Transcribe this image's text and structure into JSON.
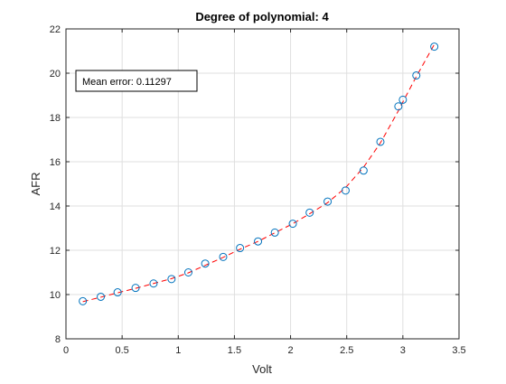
{
  "chart_data": {
    "type": "scatter",
    "title": "Degree of polynomial: 4",
    "xlabel": "Volt",
    "ylabel": "AFR",
    "xlim": [
      0,
      3.5
    ],
    "ylim": [
      8,
      22
    ],
    "xticks": [
      0,
      0.5,
      1,
      1.5,
      2,
      2.5,
      3,
      3.5
    ],
    "xtick_labels": [
      "0",
      "0.5",
      "1",
      "1.5",
      "2",
      "2.5",
      "3",
      "3.5"
    ],
    "yticks": [
      8,
      10,
      12,
      14,
      16,
      18,
      20,
      22
    ],
    "ytick_labels": [
      "8",
      "10",
      "12",
      "14",
      "16",
      "18",
      "20",
      "22"
    ],
    "grid": true,
    "annotation": "Mean error: 0.11297",
    "series": [
      {
        "type": "scatter",
        "marker": "circle",
        "color": "#0072bd",
        "x": [
          0.15,
          0.31,
          0.46,
          0.62,
          0.78,
          0.94,
          1.09,
          1.24,
          1.4,
          1.55,
          1.71,
          1.86,
          2.02,
          2.17,
          2.33,
          2.49,
          2.65,
          2.8,
          2.96,
          3.0,
          3.12,
          3.28
        ],
        "y": [
          9.7,
          9.9,
          10.1,
          10.3,
          10.5,
          10.7,
          11.0,
          11.4,
          11.7,
          12.1,
          12.4,
          12.8,
          13.2,
          13.7,
          14.2,
          14.7,
          15.6,
          16.9,
          18.5,
          18.8,
          19.9,
          21.2
        ]
      },
      {
        "type": "line",
        "style": "dashed",
        "color": "#ff0000",
        "x": [
          0.15,
          0.31,
          0.46,
          0.62,
          0.78,
          0.94,
          1.09,
          1.24,
          1.4,
          1.55,
          1.71,
          1.86,
          2.02,
          2.17,
          2.33,
          2.49,
          2.65,
          2.8,
          2.96,
          3.0,
          3.12,
          3.28
        ],
        "y": [
          9.68,
          9.88,
          10.08,
          10.28,
          10.5,
          10.72,
          10.98,
          11.32,
          11.68,
          12.05,
          12.4,
          12.79,
          13.2,
          13.65,
          14.15,
          14.83,
          15.75,
          16.85,
          18.3,
          18.7,
          19.85,
          21.3
        ]
      }
    ]
  }
}
